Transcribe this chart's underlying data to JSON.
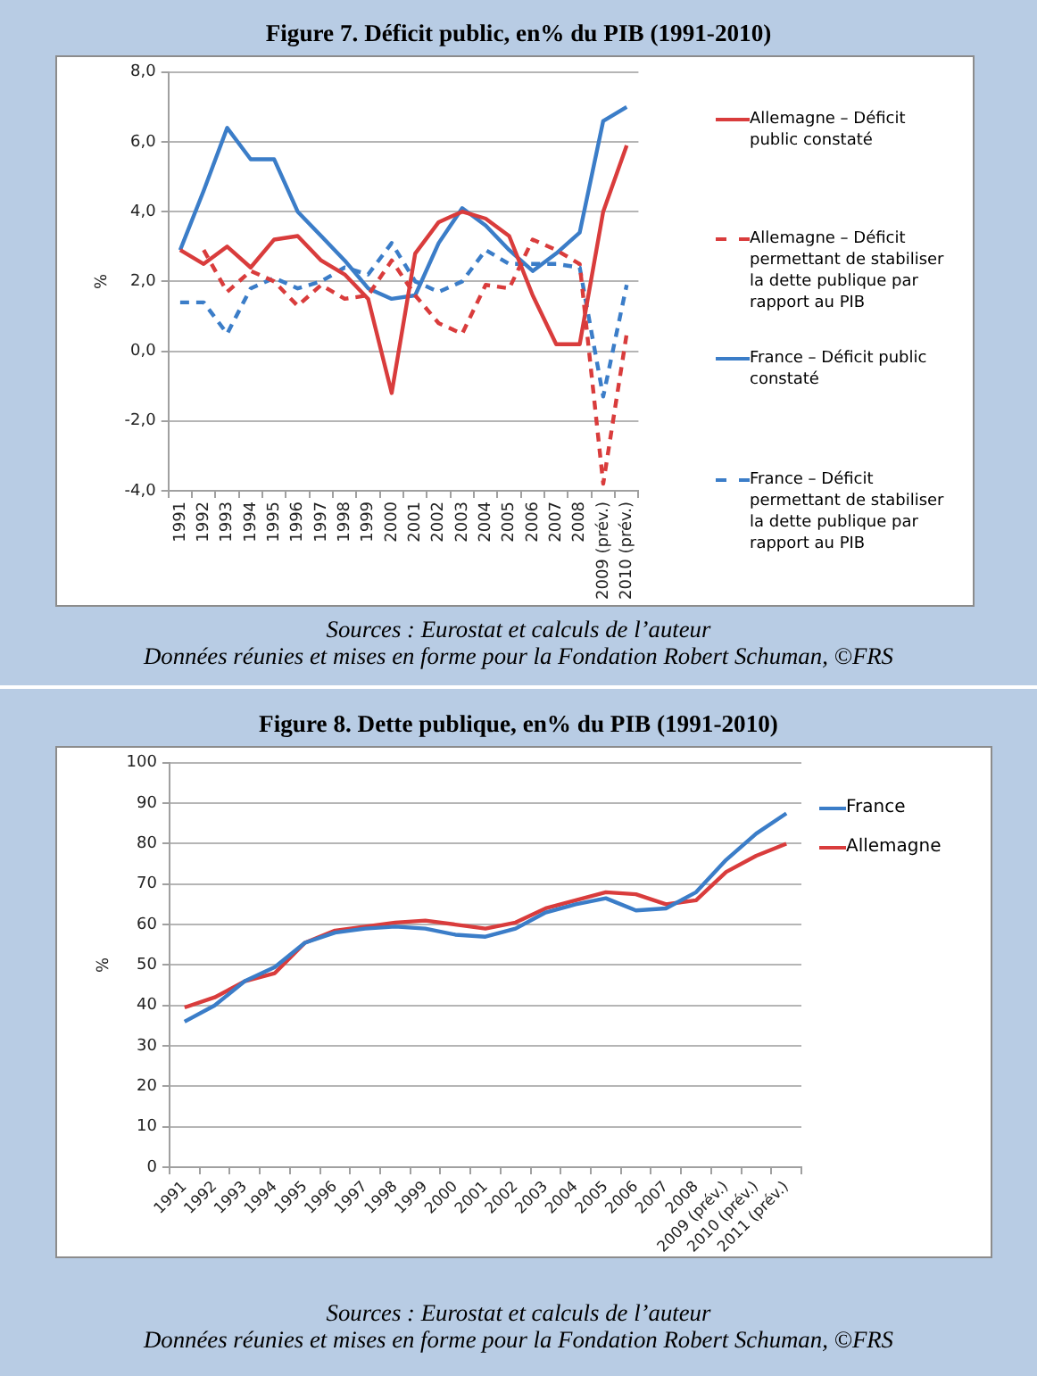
{
  "chart_data": [
    {
      "type": "line",
      "title": "Figure 7. Déficit public, en% du PIB (1991-2010)",
      "ylabel": "%",
      "categories": [
        "1991",
        "1992",
        "1993",
        "1994",
        "1995",
        "1996",
        "1997",
        "1998",
        "1999",
        "2000",
        "2001",
        "2002",
        "2003",
        "2004",
        "2005",
        "2006",
        "2007",
        "2008",
        "2009 (prév.)",
        "2010 (prév.)"
      ],
      "series": [
        {
          "name": "Allemagne – Déficit public constaté",
          "color": "#d93c3c",
          "values": [
            2.9,
            2.5,
            3.0,
            2.4,
            3.2,
            3.3,
            2.6,
            2.2,
            1.5,
            -1.2,
            2.8,
            3.7,
            4.0,
            3.8,
            3.3,
            1.6,
            0.2,
            0.2,
            4.0,
            5.9
          ]
        },
        {
          "name": "Allemagne – Déficit permettant de stabiliser la dette publique par rapport au PIB",
          "color": "#d93c3c",
          "line_style": "dashed",
          "values": [
            null,
            2.9,
            1.7,
            2.3,
            2.0,
            1.3,
            1.9,
            1.5,
            1.6,
            2.6,
            1.6,
            0.8,
            0.5,
            1.9,
            1.8,
            3.2,
            2.9,
            2.5,
            -3.8,
            0.5
          ]
        },
        {
          "name": "France – Déficit public constaté",
          "color": "#3b7dc8",
          "values": [
            2.9,
            4.6,
            6.4,
            5.5,
            5.5,
            4.0,
            3.3,
            2.6,
            1.8,
            1.5,
            1.6,
            3.1,
            4.1,
            3.6,
            2.9,
            2.3,
            2.8,
            3.4,
            6.6,
            7.0
          ]
        },
        {
          "name": "France – Déficit permettant de stabiliser la dette publique par rapport au PIB",
          "color": "#3b7dc8",
          "line_style": "dashed",
          "values": [
            1.4,
            1.4,
            0.5,
            1.8,
            2.1,
            1.8,
            2.0,
            2.4,
            2.2,
            3.1,
            2.0,
            1.7,
            2.0,
            2.9,
            2.5,
            2.5,
            2.5,
            2.4,
            -1.3,
            1.9
          ]
        }
      ],
      "ylim": [
        -4,
        8
      ],
      "yticks": [
        {
          "value": -4,
          "label": "-4,0"
        },
        {
          "value": -2,
          "label": "-2,0"
        },
        {
          "value": 0,
          "label": "0,0"
        },
        {
          "value": 2,
          "label": "2,0"
        },
        {
          "value": 4,
          "label": "4,0"
        },
        {
          "value": 6,
          "label": "6,0"
        },
        {
          "value": 8,
          "label": "8,0"
        }
      ],
      "grid": "y",
      "legend": "right",
      "line_style": "solid",
      "annotations": [
        "Sources : Eurostat et calculs de l’auteur",
        "Données réunies et mises en forme pour la Fondation Robert Schuman, ©FRS"
      ]
    },
    {
      "type": "line",
      "title": "Figure 8. Dette publique, en% du PIB (1991-2010)",
      "ylabel": "%",
      "categories": [
        "1991",
        "1992",
        "1993",
        "1994",
        "1995",
        "1996",
        "1997",
        "1998",
        "1999",
        "2000",
        "2001",
        "2002",
        "2003",
        "2004",
        "2005",
        "2006",
        "2007",
        "2008",
        "2009 (prév.)",
        "2010 (prév.)",
        "2011 (prév.)"
      ],
      "series": [
        {
          "name": "France",
          "color": "#3b7dc8",
          "values": [
            36,
            40,
            46,
            49.5,
            55.5,
            58,
            59,
            59.5,
            59,
            57.5,
            57,
            59,
            63,
            65,
            66.5,
            63.5,
            64,
            68,
            76,
            82.5,
            87.5
          ]
        },
        {
          "name": "Allemagne",
          "color": "#d93c3c",
          "values": [
            39.5,
            42,
            46,
            48,
            55.5,
            58.5,
            59.5,
            60.5,
            61,
            60,
            59,
            60.5,
            64,
            66,
            68,
            67.5,
            65,
            66,
            73,
            77,
            80
          ]
        }
      ],
      "ylim": [
        0,
        100
      ],
      "yticks": [
        0,
        10,
        20,
        30,
        40,
        50,
        60,
        70,
        80,
        90,
        100
      ],
      "grid": "y",
      "legend": "right",
      "line_style": "solid",
      "annotations": [
        "Sources : Eurostat et calculs de l’auteur",
        "Données réunies et mises en forme pour la Fondation Robert Schuman, ©FRS"
      ]
    }
  ]
}
